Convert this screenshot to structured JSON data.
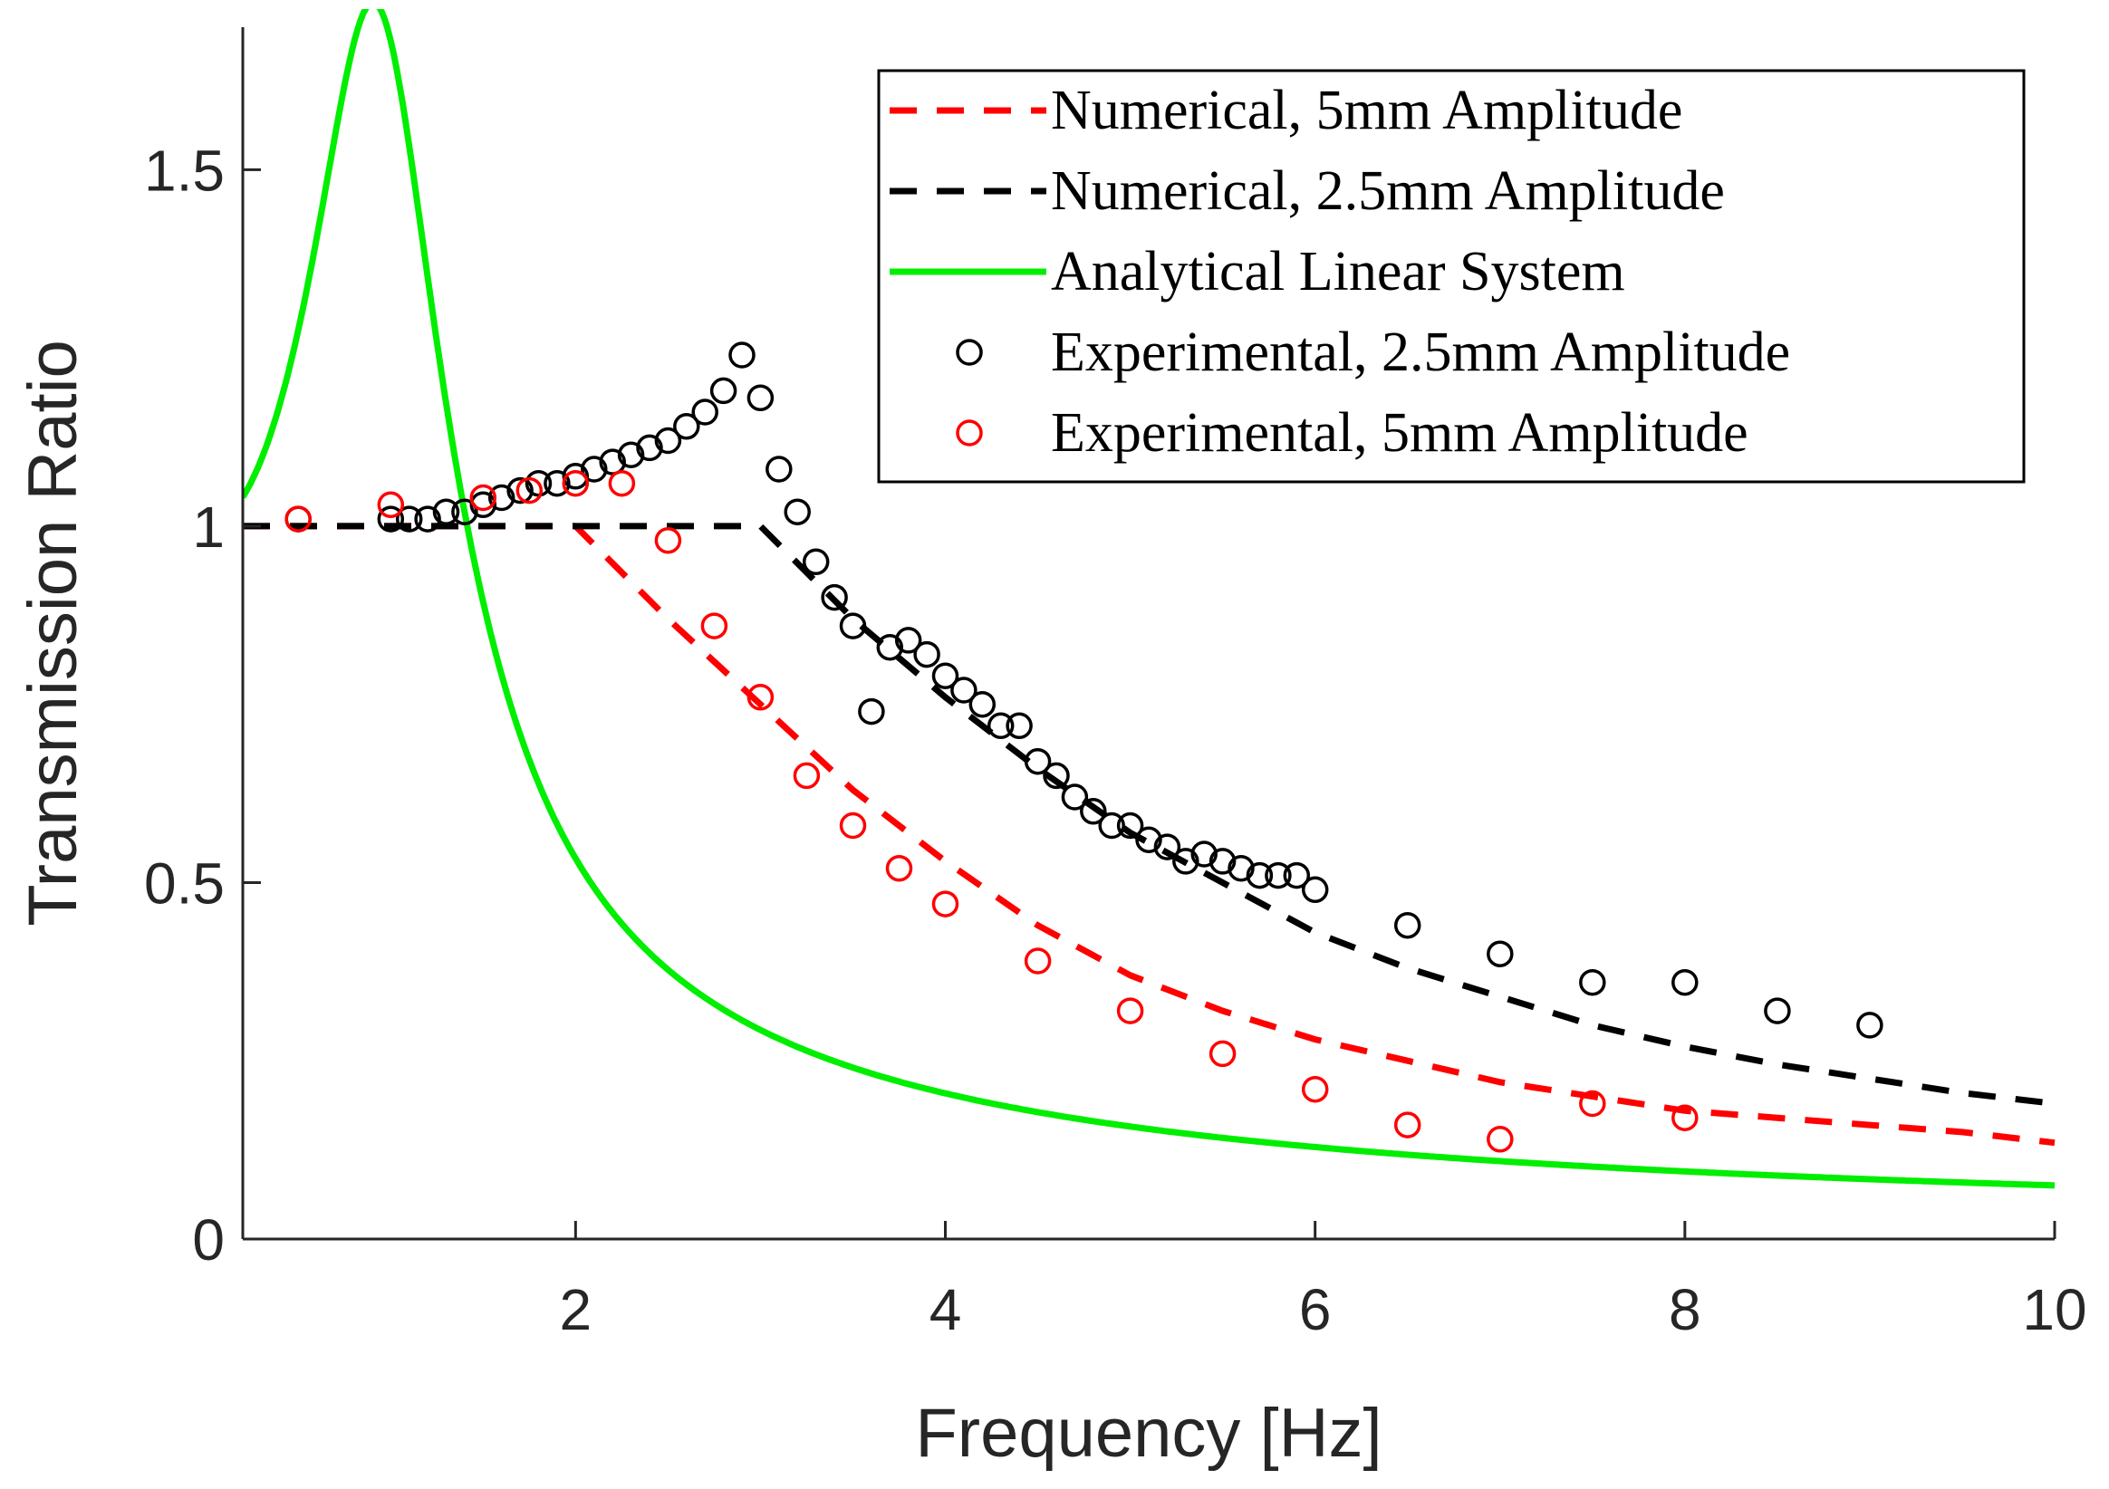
{
  "chart_data": {
    "type": "line",
    "title": "",
    "xlabel": "Frequency [Hz]",
    "ylabel": "Transmission Ratio",
    "xlim": [
      0.2,
      10
    ],
    "ylim": [
      0,
      1.7
    ],
    "xticks": [
      2,
      4,
      6,
      8,
      10
    ],
    "xtick_labels": [
      "2",
      "4",
      "6",
      "8",
      "10"
    ],
    "yticks": [
      0,
      0.5,
      1,
      1.5
    ],
    "ytick_labels": [
      "0",
      "0.5",
      "1",
      "1.5"
    ],
    "grid": false,
    "legend_position": "top-right",
    "colors": {
      "red": "#ff0000",
      "black": "#000000",
      "green": "#00ee00",
      "axis": "#262626"
    },
    "series": [
      {
        "name": "Numerical, 5mm Amplitude",
        "style": "dashed-line",
        "color": "#ff0000",
        "x": [
          0.2,
          2.0,
          2.5,
          3.0,
          3.5,
          4.0,
          4.5,
          5.0,
          5.5,
          6.0,
          6.5,
          7.0,
          7.5,
          8.0,
          8.5,
          9.0,
          9.5,
          10.0
        ],
        "y": [
          1.0,
          1.0,
          0.87,
          0.75,
          0.63,
          0.53,
          0.44,
          0.37,
          0.32,
          0.28,
          0.25,
          0.22,
          0.2,
          0.18,
          0.17,
          0.16,
          0.15,
          0.135
        ]
      },
      {
        "name": "Numerical, 2.5mm Amplitude",
        "style": "dashed-line",
        "color": "#000000",
        "x": [
          0.2,
          3.0,
          3.5,
          4.0,
          4.5,
          5.0,
          5.5,
          6.0,
          6.5,
          7.0,
          7.5,
          8.0,
          8.5,
          9.0,
          9.5,
          10.0
        ],
        "y": [
          1.0,
          1.0,
          0.87,
          0.76,
          0.66,
          0.57,
          0.5,
          0.43,
          0.38,
          0.34,
          0.3,
          0.27,
          0.245,
          0.225,
          0.205,
          0.19
        ]
      },
      {
        "name": "Analytical Linear System",
        "style": "solid-line",
        "color": "#00ee00",
        "model": {
          "natural_frequency_hz": 1.0,
          "damping_ratio": 0.37
        },
        "x_range": [
          0.2,
          10
        ]
      },
      {
        "name": "Experimental, 2.5mm Amplitude",
        "style": "circle-markers",
        "color": "#000000",
        "x": [
          0.5,
          1.0,
          1.1,
          1.2,
          1.3,
          1.4,
          1.5,
          1.6,
          1.7,
          1.8,
          1.9,
          2.0,
          2.1,
          2.2,
          2.3,
          2.4,
          2.5,
          2.6,
          2.7,
          2.8,
          2.9,
          3.0,
          3.1,
          3.2,
          3.3,
          3.4,
          3.5,
          3.6,
          3.7,
          3.8,
          3.9,
          4.0,
          4.1,
          4.2,
          4.3,
          4.4,
          4.5,
          4.6,
          4.7,
          4.8,
          4.9,
          5.0,
          5.1,
          5.2,
          5.3,
          5.4,
          5.5,
          5.6,
          5.7,
          5.8,
          5.9,
          6.0,
          6.5,
          7.0,
          7.5,
          8.0,
          8.5,
          9.0
        ],
        "y": [
          1.01,
          1.01,
          1.01,
          1.01,
          1.02,
          1.02,
          1.03,
          1.04,
          1.05,
          1.06,
          1.06,
          1.07,
          1.08,
          1.09,
          1.1,
          1.11,
          1.12,
          1.14,
          1.16,
          1.19,
          1.24,
          1.18,
          1.08,
          1.02,
          0.95,
          0.9,
          0.86,
          0.74,
          0.83,
          0.84,
          0.82,
          0.79,
          0.77,
          0.75,
          0.72,
          0.72,
          0.67,
          0.65,
          0.62,
          0.6,
          0.58,
          0.58,
          0.56,
          0.55,
          0.53,
          0.54,
          0.53,
          0.52,
          0.51,
          0.51,
          0.51,
          0.49,
          0.44,
          0.4,
          0.36,
          0.36,
          0.32,
          0.3
        ]
      },
      {
        "name": "Experimental, 5mm Amplitude",
        "style": "circle-markers",
        "color": "#ff0000",
        "x": [
          0.5,
          1.0,
          1.5,
          1.75,
          2.0,
          2.25,
          2.5,
          2.75,
          3.0,
          3.25,
          3.5,
          3.75,
          4.0,
          4.5,
          5.0,
          5.5,
          6.0,
          6.5,
          7.0,
          7.5,
          8.0
        ],
        "y": [
          1.01,
          1.03,
          1.04,
          1.05,
          1.06,
          1.06,
          0.98,
          0.86,
          0.76,
          0.65,
          0.58,
          0.52,
          0.47,
          0.39,
          0.32,
          0.26,
          0.21,
          0.16,
          0.14,
          0.19,
          0.17
        ]
      }
    ]
  }
}
